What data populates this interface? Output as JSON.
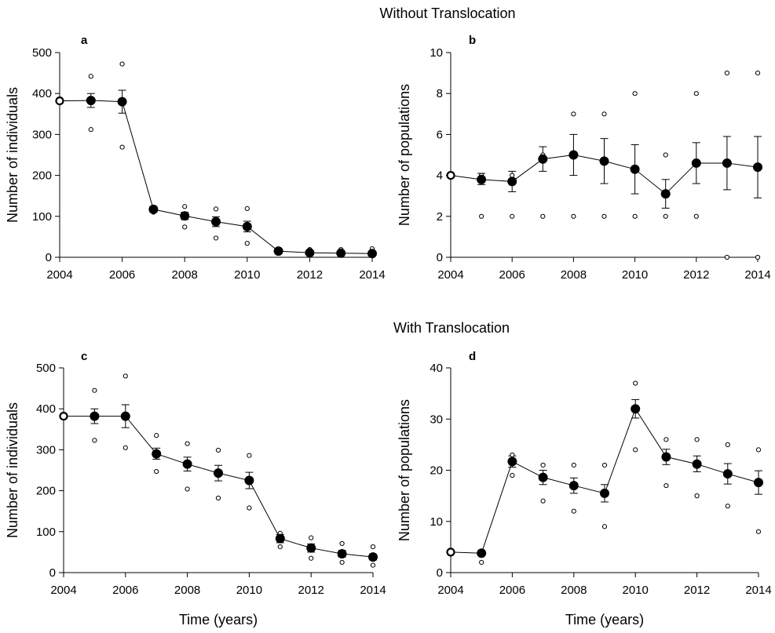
{
  "titles": {
    "top": "Without Translocation",
    "bottom": "With Translocation"
  },
  "chart_data": [
    {
      "id": "a",
      "type": "line",
      "panel_label": "a",
      "xlabel": "",
      "ylabel": "Number of individuals",
      "xlim": [
        2004,
        2014
      ],
      "ylim": [
        0,
        500
      ],
      "xticks": [
        2004,
        2006,
        2008,
        2010,
        2012,
        2014
      ],
      "yticks": [
        0,
        100,
        200,
        300,
        400,
        500
      ],
      "x": [
        2004,
        2005,
        2006,
        2007,
        2008,
        2009,
        2010,
        2011,
        2012,
        2013,
        2014
      ],
      "mean": [
        382,
        383,
        380,
        117,
        101,
        87,
        75,
        15,
        11,
        10,
        9
      ],
      "err_low": [
        382,
        366,
        352,
        110,
        92,
        75,
        62,
        12,
        8,
        7,
        6
      ],
      "err_high": [
        382,
        400,
        408,
        124,
        110,
        99,
        88,
        18,
        14,
        13,
        12
      ],
      "min": [
        382,
        312,
        269,
        110,
        74,
        47,
        34,
        11,
        9,
        5,
        5
      ],
      "max": [
        382,
        442,
        472,
        120,
        124,
        118,
        119,
        16,
        19,
        19,
        21
      ]
    },
    {
      "id": "b",
      "type": "line",
      "panel_label": "b",
      "xlabel": "",
      "ylabel": "Number of populations",
      "xlim": [
        2004,
        2014
      ],
      "ylim": [
        0,
        10
      ],
      "xticks": [
        2004,
        2006,
        2008,
        2010,
        2012,
        2014
      ],
      "yticks": [
        0,
        2,
        4,
        6,
        8,
        10
      ],
      "x": [
        2004,
        2005,
        2006,
        2007,
        2008,
        2009,
        2010,
        2011,
        2012,
        2013,
        2014
      ],
      "mean": [
        4,
        3.8,
        3.7,
        4.8,
        5.0,
        4.7,
        4.3,
        3.1,
        4.6,
        4.6,
        4.4
      ],
      "err_low": [
        4,
        3.55,
        3.2,
        4.2,
        4.0,
        3.6,
        3.1,
        2.4,
        3.6,
        3.3,
        2.9
      ],
      "err_high": [
        4,
        4.1,
        4.2,
        5.4,
        6.0,
        5.8,
        5.5,
        3.8,
        5.6,
        5.9,
        5.9
      ],
      "min": [
        4,
        2,
        2,
        2,
        2,
        2,
        2,
        2,
        2,
        0,
        0
      ],
      "max": [
        4,
        4,
        4,
        5,
        7,
        7,
        8,
        5,
        8,
        9,
        9
      ]
    },
    {
      "id": "c",
      "type": "line",
      "panel_label": "c",
      "xlabel": "Time (years)",
      "ylabel": "Number of individuals",
      "xlim": [
        2004,
        2014
      ],
      "ylim": [
        0,
        500
      ],
      "xticks": [
        2004,
        2006,
        2008,
        2010,
        2012,
        2014
      ],
      "yticks": [
        0,
        100,
        200,
        300,
        400,
        500
      ],
      "x": [
        2004,
        2005,
        2006,
        2007,
        2008,
        2009,
        2010,
        2011,
        2012,
        2013,
        2014
      ],
      "mean": [
        382,
        382,
        382,
        290,
        265,
        243,
        225,
        83,
        60,
        46,
        38
      ],
      "err_low": [
        382,
        364,
        354,
        277,
        248,
        224,
        205,
        73,
        50,
        38,
        31
      ],
      "err_high": [
        382,
        400,
        410,
        304,
        282,
        262,
        245,
        93,
        70,
        54,
        45
      ],
      "min": [
        382,
        323,
        305,
        247,
        204,
        182,
        158,
        63,
        35,
        25,
        18
      ],
      "max": [
        382,
        445,
        480,
        335,
        315,
        299,
        286,
        96,
        85,
        71,
        63
      ]
    },
    {
      "id": "d",
      "type": "line",
      "panel_label": "d",
      "xlabel": "Time (years)",
      "ylabel": "Number of populations",
      "xlim": [
        2004,
        2014
      ],
      "ylim": [
        0,
        40
      ],
      "xticks": [
        2004,
        2006,
        2008,
        2010,
        2012,
        2014
      ],
      "yticks": [
        0,
        10,
        20,
        30,
        40
      ],
      "x": [
        2004,
        2005,
        2006,
        2007,
        2008,
        2009,
        2010,
        2011,
        2012,
        2013,
        2014
      ],
      "mean": [
        4,
        3.8,
        21.7,
        18.6,
        17.0,
        15.5,
        32.0,
        22.6,
        21.2,
        19.3,
        17.6
      ],
      "err_low": [
        4,
        3.5,
        20.6,
        17.2,
        15.5,
        13.8,
        30.2,
        21.1,
        19.7,
        17.3,
        15.3
      ],
      "err_high": [
        4,
        4.1,
        22.8,
        20.0,
        18.5,
        17.2,
        33.8,
        24.1,
        22.8,
        21.3,
        19.9
      ],
      "min": [
        4,
        2,
        19,
        14,
        12,
        9,
        24,
        17,
        15,
        13,
        8
      ],
      "max": [
        4,
        4,
        23,
        21,
        21,
        21,
        37,
        26,
        26,
        25,
        24
      ]
    }
  ]
}
